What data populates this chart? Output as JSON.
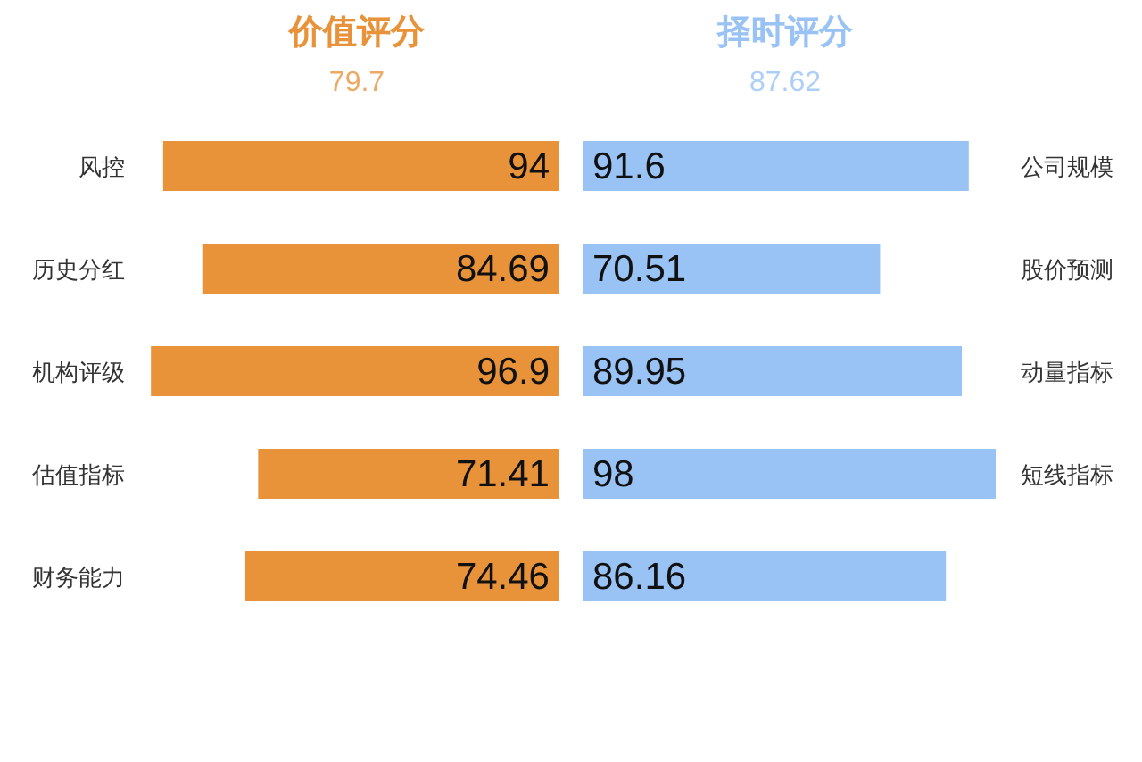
{
  "chart_data": [
    {
      "type": "bar",
      "orientation": "horizontal",
      "title": "价值评分",
      "subtitle": "79.7",
      "categories": [
        "风控",
        "历史分红",
        "机构评级",
        "估值指标",
        "财务能力"
      ],
      "values": [
        94,
        84.69,
        96.9,
        71.41,
        74.46
      ],
      "color": "#e8923a",
      "data_labels": true,
      "tick_labels": "y"
    },
    {
      "type": "bar",
      "orientation": "horizontal",
      "title": "择时评分",
      "subtitle": "87.62",
      "categories": [
        "公司规模",
        "股价预测",
        "动量指标",
        "短线指标",
        null
      ],
      "values": [
        91.6,
        70.51,
        89.95,
        98,
        86.16
      ],
      "color": "#99c2f5",
      "data_labels": true,
      "tick_labels": "y"
    }
  ]
}
